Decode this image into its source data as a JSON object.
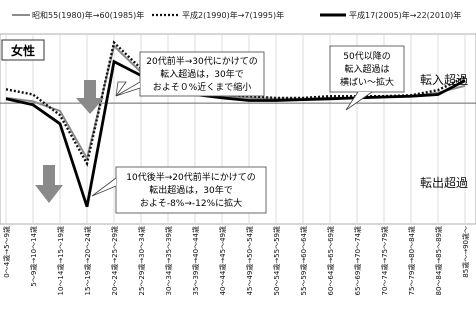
{
  "chart_data": {
    "type": "line",
    "panel_label": "女性",
    "legend": [
      {
        "name": "昭和55(1980)年→60(1985)年",
        "color": "#8c8c8c",
        "dash": "solid"
      },
      {
        "name": "平成2(1990)年→7(1995)年",
        "color": "#111111",
        "dash": "dotted"
      },
      {
        "name": "平成17(2005)年→22(2010)年",
        "color": "#000000",
        "dash": "solid"
      }
    ],
    "categories": [
      "0〜4歳→5〜9歳",
      "5〜9歳→10〜14歳",
      "10〜14歳→15〜19歳",
      "15〜19歳→20〜24歳",
      "20〜24歳→25〜29歳",
      "25〜29歳→30〜34歳",
      "30〜34歳→35〜39歳",
      "35〜39歳→40〜44歳",
      "40〜44歳→45〜49歳",
      "45〜49歳→50〜54歳",
      "50〜54歳→55〜59歳",
      "55〜59歳→60〜64歳",
      "60〜64歳→65〜69歳",
      "65〜69歳→70〜74歳",
      "70〜74歳→75〜79歳",
      "75〜79歳→80〜84歳",
      "80〜84歳→85〜89歳",
      "85歳〜→90歳〜"
    ],
    "series": [
      {
        "name": "昭和55(1980)年→60(1985)年",
        "values": [
          0.6,
          0.2,
          -0.9,
          -6.4,
          6.6,
          3.6,
          2.2,
          1.2,
          0.8,
          0.6,
          0.5,
          0.5,
          0.6,
          0.6,
          0.7,
          0.8,
          1.2,
          2.0
        ]
      },
      {
        "name": "平成2(1990)年→7(1995)年",
        "values": [
          1.6,
          1.0,
          -1.4,
          -7.0,
          7.0,
          4.0,
          2.5,
          1.5,
          1.0,
          0.8,
          0.6,
          0.6,
          0.8,
          0.8,
          0.8,
          0.9,
          1.5,
          3.0
        ]
      },
      {
        "name": "平成17(2005)年→22(2010)年",
        "values": [
          0.5,
          -0.2,
          -2.4,
          -12.0,
          4.8,
          3.2,
          1.7,
          1.0,
          0.6,
          0.3,
          0.3,
          0.4,
          0.5,
          0.6,
          0.7,
          0.8,
          1.0,
          2.6
        ]
      }
    ],
    "ylim": [
      -14,
      8
    ],
    "zero_line": true,
    "grid": "vertical",
    "side_labels": {
      "top": "転入超過",
      "bottom": "転出超過"
    },
    "annotations": [
      {
        "lines": [
          "20代前半→30代にかけての",
          "転入超過は，30年で",
          "およそ０%近くまで縮小"
        ]
      },
      {
        "lines": [
          "50代以降の",
          "転入超過は",
          "横ばい〜拡大"
        ]
      },
      {
        "lines": [
          "10代後半→20代前半にかけての",
          "転出超過は，30年で",
          "およそ-8%→-12%に拡大"
        ]
      }
    ]
  }
}
